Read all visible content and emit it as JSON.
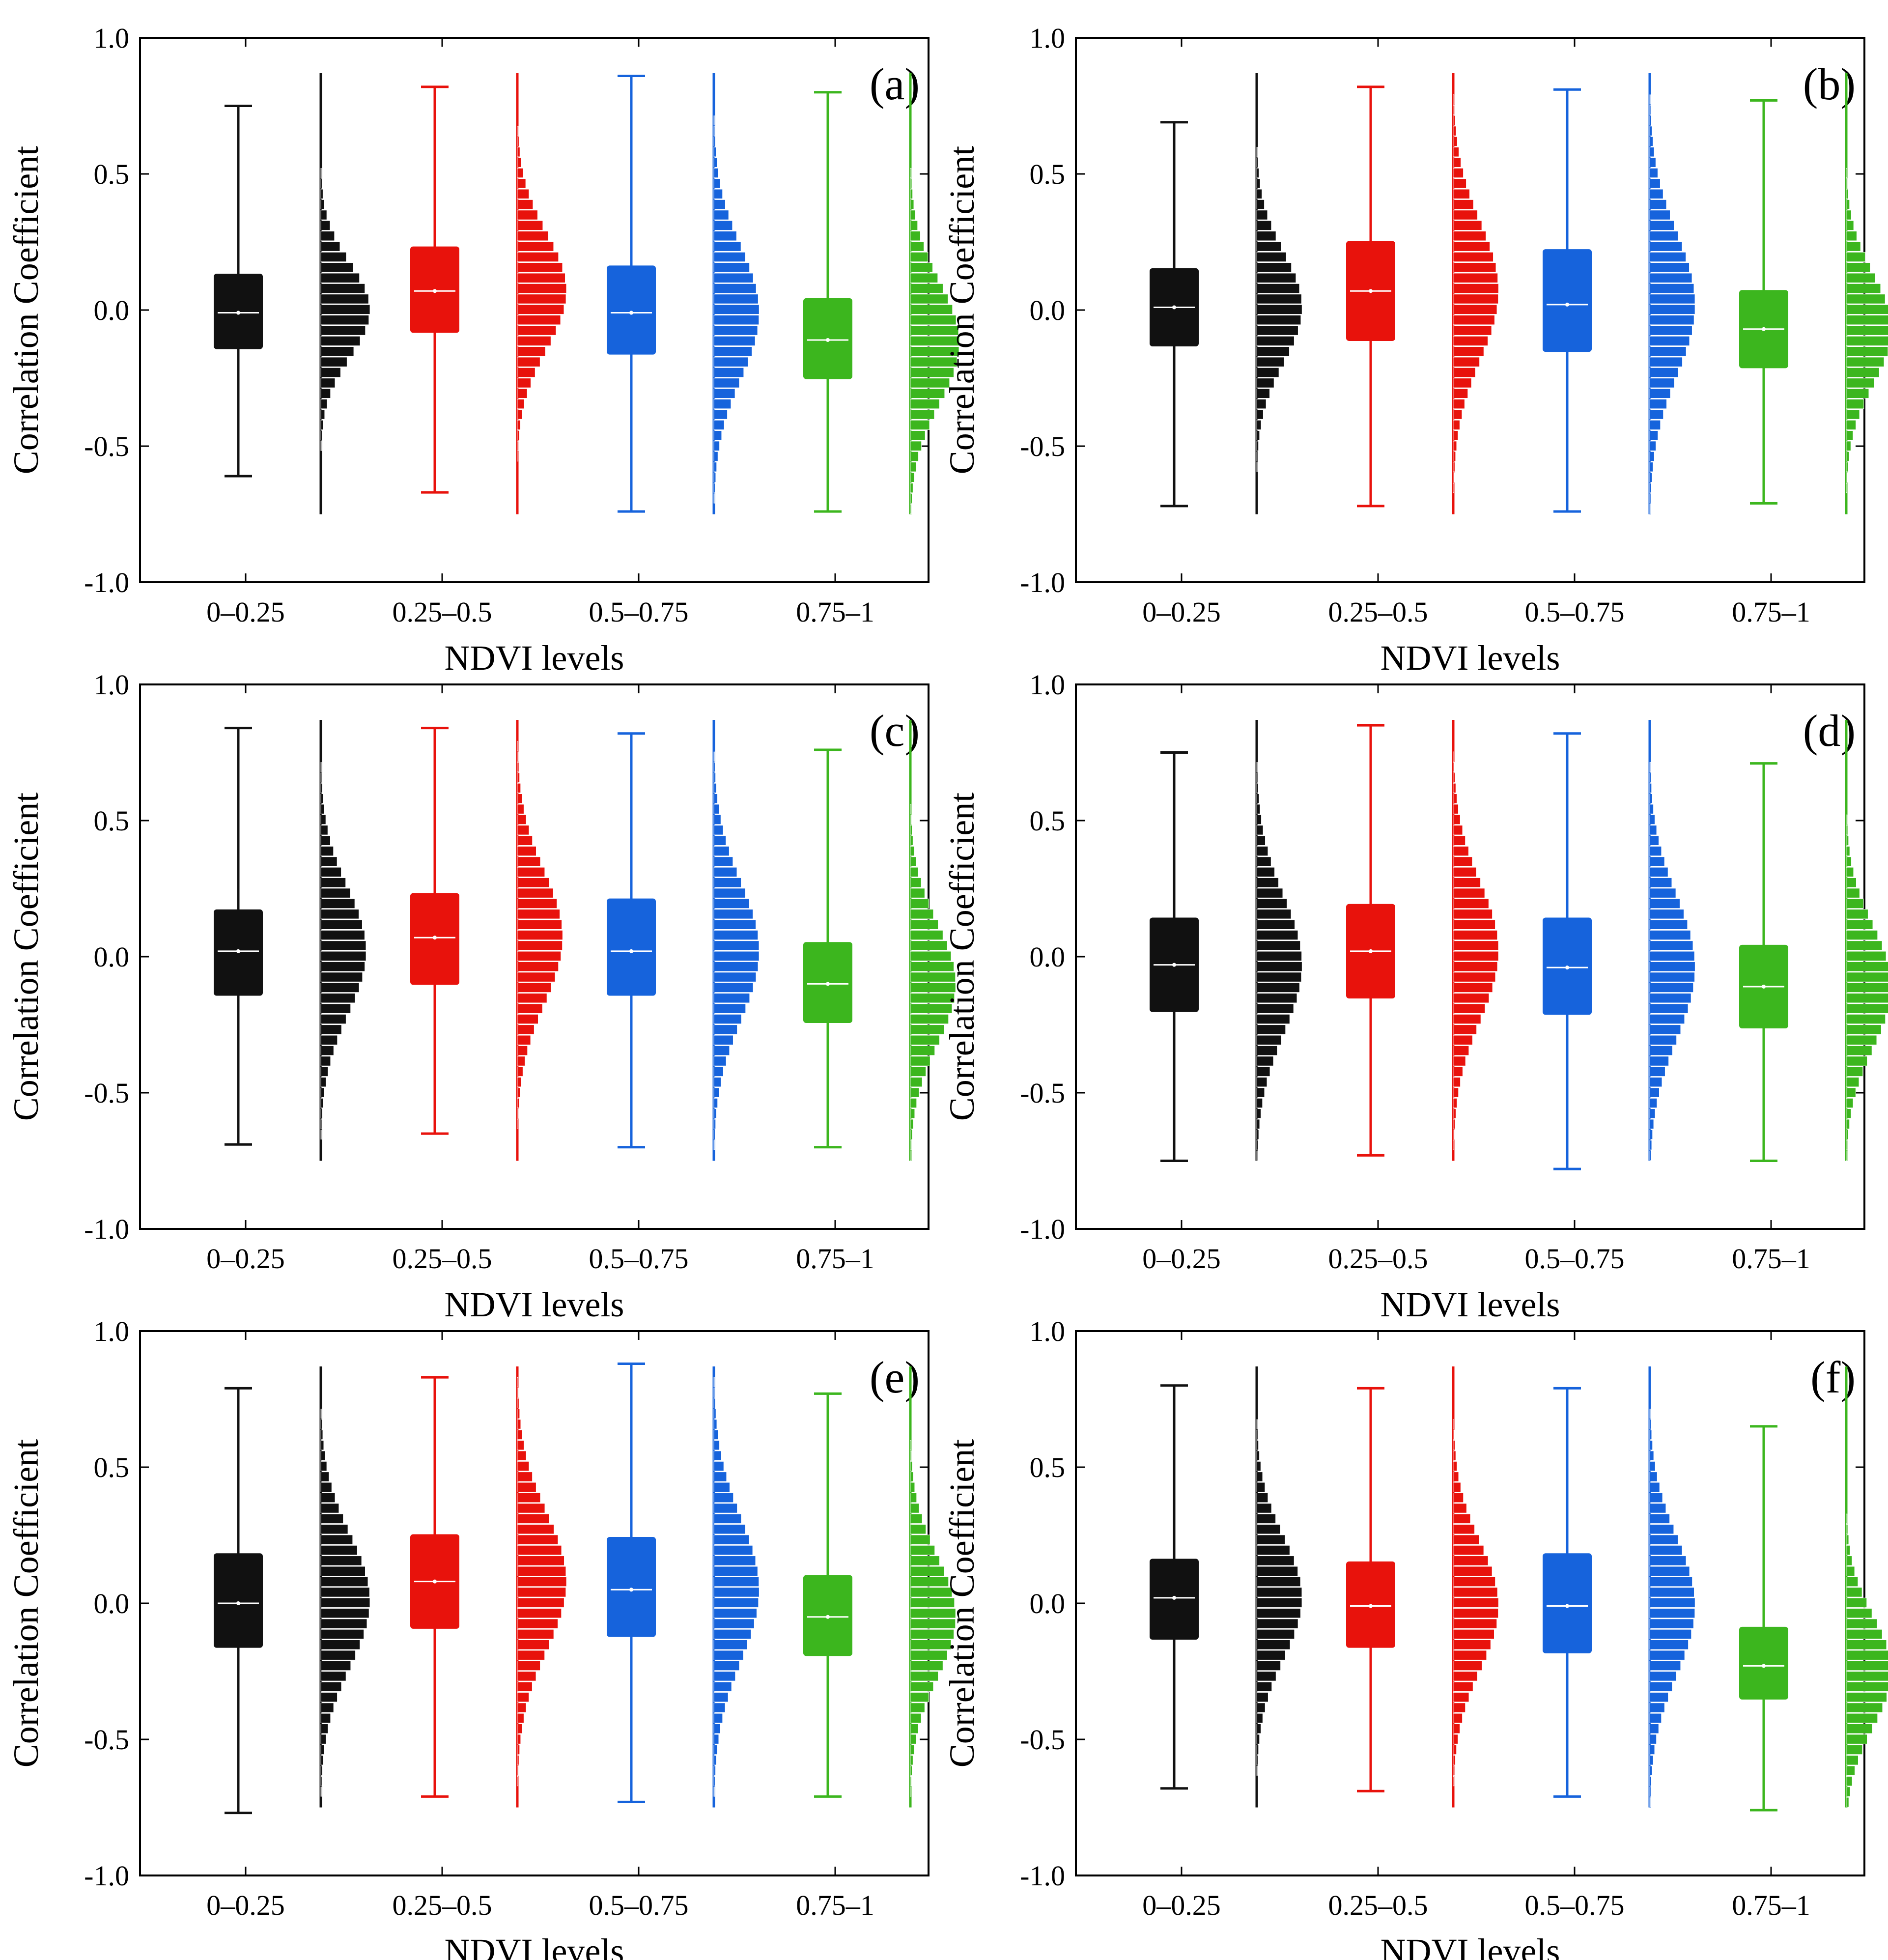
{
  "figure": {
    "background": "#ffffff"
  },
  "colors": {
    "black": "#111111",
    "red": "#e8120c",
    "blue": "#1663dc",
    "green": "#3cb61e"
  },
  "chart_data": [
    {
      "type": "box-histogram",
      "label": "(a)",
      "xlabel": "NDVI levels",
      "ylabel": "Correlation Coefficient",
      "ylim": [
        -1.0,
        1.0
      ],
      "yticks": [
        "-1.0",
        "-0.5",
        "0.0",
        "0.5",
        "1.0"
      ],
      "categories": [
        "0–0.25",
        "0.25–0.5",
        "0.5–0.75",
        "0.75–1"
      ],
      "series": [
        {
          "name": "0–0.25",
          "color": "#111111",
          "min": -0.61,
          "q1": -0.14,
          "median": -0.01,
          "q3": 0.13,
          "max": 0.75,
          "dist_mean": 0.0,
          "dist_sd": 0.17,
          "dist_peak": 0.13
        },
        {
          "name": "0.25–0.5",
          "color": "#e8120c",
          "min": -0.67,
          "q1": -0.08,
          "median": 0.07,
          "q3": 0.23,
          "max": 0.82,
          "dist_mean": 0.07,
          "dist_sd": 0.21,
          "dist_peak": 0.13
        },
        {
          "name": "0.5–0.75",
          "color": "#1663dc",
          "min": -0.74,
          "q1": -0.16,
          "median": -0.01,
          "q3": 0.16,
          "max": 0.86,
          "dist_mean": -0.01,
          "dist_sd": 0.24,
          "dist_peak": 0.12
        },
        {
          "name": "0.75–1",
          "color": "#3cb61e",
          "min": -0.74,
          "q1": -0.25,
          "median": -0.11,
          "q3": 0.04,
          "max": 0.8,
          "dist_mean": -0.12,
          "dist_sd": 0.22,
          "dist_peak": 0.13
        }
      ]
    },
    {
      "type": "box-histogram",
      "label": "(b)",
      "xlabel": "NDVI levels",
      "ylabel": "Correlation Coefficient",
      "ylim": [
        -1.0,
        1.0
      ],
      "yticks": [
        "-1.0",
        "-0.5",
        "0.0",
        "0.5",
        "1.0"
      ],
      "categories": [
        "0–0.25",
        "0.25–0.5",
        "0.5–0.75",
        "0.75–1"
      ],
      "series": [
        {
          "name": "0–0.25",
          "color": "#111111",
          "min": -0.72,
          "q1": -0.13,
          "median": 0.01,
          "q3": 0.15,
          "max": 0.69,
          "dist_mean": 0.01,
          "dist_sd": 0.2,
          "dist_peak": 0.12
        },
        {
          "name": "0.25–0.5",
          "color": "#e8120c",
          "min": -0.72,
          "q1": -0.11,
          "median": 0.07,
          "q3": 0.25,
          "max": 0.82,
          "dist_mean": 0.07,
          "dist_sd": 0.25,
          "dist_peak": 0.12
        },
        {
          "name": "0.5–0.75",
          "color": "#1663dc",
          "min": -0.74,
          "q1": -0.15,
          "median": 0.02,
          "q3": 0.22,
          "max": 0.81,
          "dist_mean": 0.02,
          "dist_sd": 0.26,
          "dist_peak": 0.12
        },
        {
          "name": "0.75–1",
          "color": "#3cb61e",
          "min": -0.71,
          "q1": -0.21,
          "median": -0.07,
          "q3": 0.07,
          "max": 0.77,
          "dist_mean": -0.07,
          "dist_sd": 0.2,
          "dist_peak": 0.12
        }
      ]
    },
    {
      "type": "box-histogram",
      "label": "(c)",
      "xlabel": "NDVI levels",
      "ylabel": "Correlation Coefficient",
      "ylim": [
        -1.0,
        1.0
      ],
      "yticks": [
        "-1.0",
        "-0.5",
        "0.0",
        "0.5",
        "1.0"
      ],
      "categories": [
        "0–0.25",
        "0.25–0.5",
        "0.5–0.75",
        "0.75–1"
      ],
      "series": [
        {
          "name": "0–0.25",
          "color": "#111111",
          "min": -0.69,
          "q1": -0.14,
          "median": 0.02,
          "q3": 0.17,
          "max": 0.84,
          "dist_mean": 0.02,
          "dist_sd": 0.23,
          "dist_peak": 0.12
        },
        {
          "name": "0.25–0.5",
          "color": "#e8120c",
          "min": -0.65,
          "q1": -0.1,
          "median": 0.07,
          "q3": 0.23,
          "max": 0.84,
          "dist_mean": 0.07,
          "dist_sd": 0.24,
          "dist_peak": 0.12
        },
        {
          "name": "0.5–0.75",
          "color": "#1663dc",
          "min": -0.7,
          "q1": -0.14,
          "median": 0.02,
          "q3": 0.21,
          "max": 0.82,
          "dist_mean": 0.02,
          "dist_sd": 0.25,
          "dist_peak": 0.12
        },
        {
          "name": "0.75–1",
          "color": "#3cb61e",
          "min": -0.7,
          "q1": -0.24,
          "median": -0.1,
          "q3": 0.05,
          "max": 0.76,
          "dist_mean": -0.1,
          "dist_sd": 0.22,
          "dist_peak": 0.12
        }
      ]
    },
    {
      "type": "box-histogram",
      "label": "(d)",
      "xlabel": "NDVI levels",
      "ylabel": "Correlation Coefficient",
      "ylim": [
        -1.0,
        1.0
      ],
      "yticks": [
        "-1.0",
        "-0.5",
        "0.0",
        "0.5",
        "1.0"
      ],
      "categories": [
        "0–0.25",
        "0.25–0.5",
        "0.5–0.75",
        "0.75–1"
      ],
      "series": [
        {
          "name": "0–0.25",
          "color": "#111111",
          "min": -0.75,
          "q1": -0.2,
          "median": -0.03,
          "q3": 0.14,
          "max": 0.75,
          "dist_mean": -0.03,
          "dist_sd": 0.25,
          "dist_peak": 0.12
        },
        {
          "name": "0.25–0.5",
          "color": "#e8120c",
          "min": -0.73,
          "q1": -0.15,
          "median": 0.02,
          "q3": 0.19,
          "max": 0.85,
          "dist_mean": 0.02,
          "dist_sd": 0.25,
          "dist_peak": 0.12
        },
        {
          "name": "0.5–0.75",
          "color": "#1663dc",
          "min": -0.78,
          "q1": -0.21,
          "median": -0.04,
          "q3": 0.14,
          "max": 0.82,
          "dist_mean": -0.04,
          "dist_sd": 0.26,
          "dist_peak": 0.12
        },
        {
          "name": "0.75–1",
          "color": "#3cb61e",
          "min": -0.75,
          "q1": -0.26,
          "median": -0.11,
          "q3": 0.04,
          "max": 0.71,
          "dist_mean": -0.11,
          "dist_sd": 0.22,
          "dist_peak": 0.12
        }
      ]
    },
    {
      "type": "box-histogram",
      "label": "(e)",
      "xlabel": "NDVI levels",
      "ylabel": "Correlation Coefficient",
      "ylim": [
        -1.0,
        1.0
      ],
      "yticks": [
        "-1.0",
        "-0.5",
        "0.0",
        "0.5",
        "1.0"
      ],
      "categories": [
        "0–0.25",
        "0.25–0.5",
        "0.5–0.75",
        "0.75–1"
      ],
      "series": [
        {
          "name": "0–0.25",
          "color": "#111111",
          "min": -0.77,
          "q1": -0.16,
          "median": 0.0,
          "q3": 0.18,
          "max": 0.79,
          "dist_mean": 0.01,
          "dist_sd": 0.24,
          "dist_peak": 0.13
        },
        {
          "name": "0.25–0.5",
          "color": "#e8120c",
          "min": -0.71,
          "q1": -0.09,
          "median": 0.08,
          "q3": 0.25,
          "max": 0.83,
          "dist_mean": 0.08,
          "dist_sd": 0.25,
          "dist_peak": 0.13
        },
        {
          "name": "0.5–0.75",
          "color": "#1663dc",
          "min": -0.73,
          "q1": -0.12,
          "median": 0.05,
          "q3": 0.24,
          "max": 0.88,
          "dist_mean": 0.05,
          "dist_sd": 0.26,
          "dist_peak": 0.12
        },
        {
          "name": "0.75–1",
          "color": "#3cb61e",
          "min": -0.71,
          "q1": -0.19,
          "median": -0.05,
          "q3": 0.1,
          "max": 0.77,
          "dist_mean": -0.05,
          "dist_sd": 0.22,
          "dist_peak": 0.12
        }
      ]
    },
    {
      "type": "box-histogram",
      "label": "(f)",
      "xlabel": "NDVI levels",
      "ylabel": "Correlation Coefficient",
      "ylim": [
        -1.0,
        1.0
      ],
      "yticks": [
        "-1.0",
        "-0.5",
        "0.0",
        "0.5",
        "1.0"
      ],
      "categories": [
        "0–0.25",
        "0.25–0.5",
        "0.5–0.75",
        "0.75–1"
      ],
      "series": [
        {
          "name": "0–0.25",
          "color": "#111111",
          "min": -0.68,
          "q1": -0.13,
          "median": 0.02,
          "q3": 0.16,
          "max": 0.8,
          "dist_mean": 0.02,
          "dist_sd": 0.22,
          "dist_peak": 0.12
        },
        {
          "name": "0.25–0.5",
          "color": "#e8120c",
          "min": -0.69,
          "q1": -0.16,
          "median": -0.01,
          "q3": 0.15,
          "max": 0.79,
          "dist_mean": -0.01,
          "dist_sd": 0.23,
          "dist_peak": 0.12
        },
        {
          "name": "0.5–0.75",
          "color": "#1663dc",
          "min": -0.71,
          "q1": -0.18,
          "median": -0.01,
          "q3": 0.18,
          "max": 0.79,
          "dist_mean": -0.01,
          "dist_sd": 0.25,
          "dist_peak": 0.12
        },
        {
          "name": "0.75–1",
          "color": "#3cb61e",
          "min": -0.76,
          "q1": -0.35,
          "median": -0.23,
          "q3": -0.09,
          "max": 0.65,
          "dist_mean": -0.25,
          "dist_sd": 0.2,
          "dist_peak": 0.12
        }
      ]
    }
  ]
}
